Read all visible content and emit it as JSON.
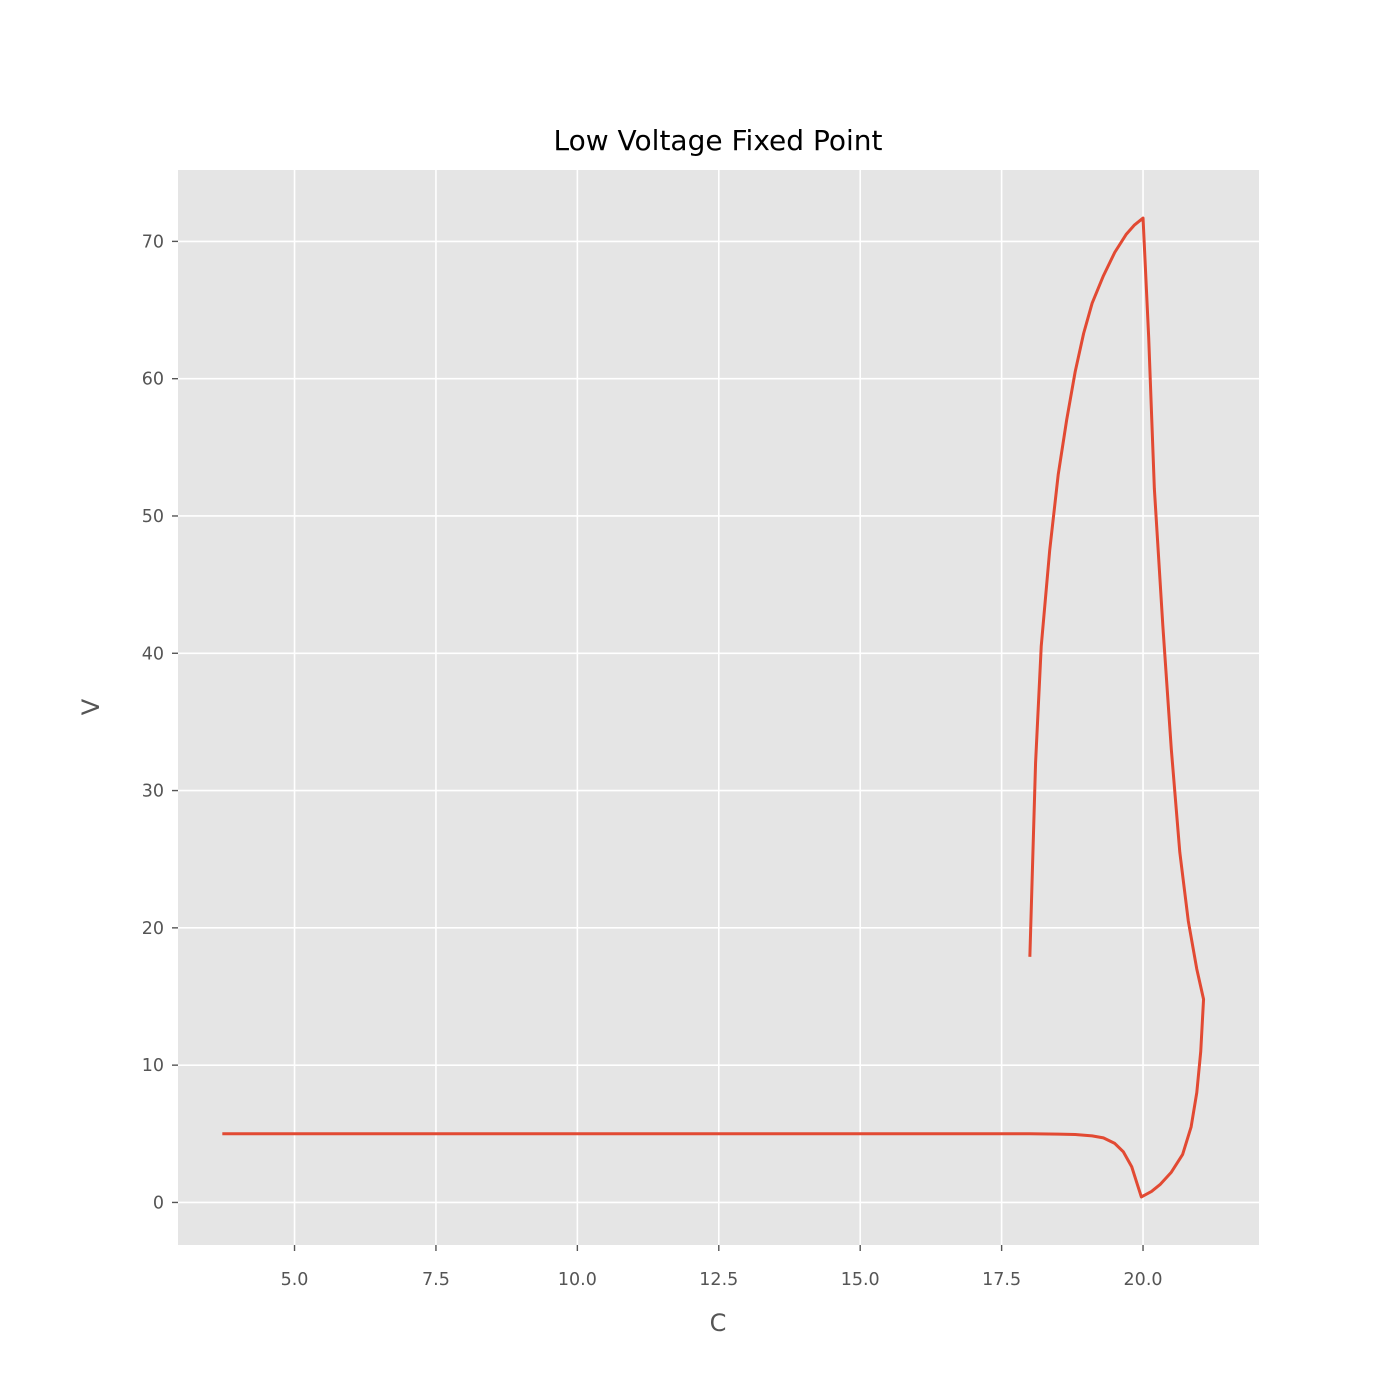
{
  "chart_data": {
    "type": "line",
    "title": "Low Voltage Fixed Point",
    "xlabel": "C",
    "ylabel": "V",
    "xlim": [
      2.94,
      22.05
    ],
    "ylim": [
      -3.1,
      75.2
    ],
    "xticks": [
      5.0,
      7.5,
      10.0,
      12.5,
      15.0,
      17.5,
      20.0
    ],
    "xtick_labels": [
      "5.0",
      "7.5",
      "10.0",
      "12.5",
      "15.0",
      "17.5",
      "20.0"
    ],
    "yticks": [
      0,
      10,
      20,
      30,
      40,
      50,
      60,
      70
    ],
    "ytick_labels": [
      "0",
      "10",
      "20",
      "30",
      "40",
      "50",
      "60",
      "70"
    ],
    "grid": true,
    "style": "ggplot",
    "colors": {
      "plot_background": "#e5e5e5",
      "grid": "#ffffff",
      "line": "#e24a33",
      "tick_text": "#555555",
      "title_text": "#000000"
    },
    "series": [
      {
        "points": [
          [
            18.0,
            18.0
          ],
          [
            18.1,
            32.0
          ],
          [
            18.2,
            40.5
          ],
          [
            18.35,
            47.5
          ],
          [
            18.5,
            53.0
          ],
          [
            18.65,
            57.0
          ],
          [
            18.8,
            60.5
          ],
          [
            18.95,
            63.3
          ],
          [
            19.1,
            65.5
          ],
          [
            19.3,
            67.5
          ],
          [
            19.5,
            69.2
          ],
          [
            19.7,
            70.5
          ],
          [
            19.85,
            71.2
          ],
          [
            20.0,
            71.7
          ],
          [
            20.1,
            63.0
          ],
          [
            20.2,
            52.0
          ],
          [
            20.35,
            42.0
          ],
          [
            20.5,
            33.0
          ],
          [
            20.65,
            25.5
          ],
          [
            20.8,
            20.5
          ],
          [
            20.95,
            17.0
          ],
          [
            21.07,
            14.8
          ],
          [
            21.02,
            11.0
          ],
          [
            20.95,
            8.0
          ],
          [
            20.85,
            5.5
          ],
          [
            20.7,
            3.5
          ],
          [
            20.5,
            2.2
          ],
          [
            20.3,
            1.3
          ],
          [
            20.15,
            0.8
          ],
          [
            19.97,
            0.4
          ],
          [
            19.9,
            1.3
          ],
          [
            19.8,
            2.6
          ],
          [
            19.65,
            3.7
          ],
          [
            19.5,
            4.3
          ],
          [
            19.3,
            4.7
          ],
          [
            19.1,
            4.85
          ],
          [
            18.8,
            4.95
          ],
          [
            18.5,
            4.98
          ],
          [
            18.0,
            5.0
          ],
          [
            15.0,
            5.0
          ],
          [
            10.0,
            5.0
          ],
          [
            5.0,
            5.0
          ],
          [
            3.75,
            5.0
          ]
        ]
      }
    ]
  }
}
